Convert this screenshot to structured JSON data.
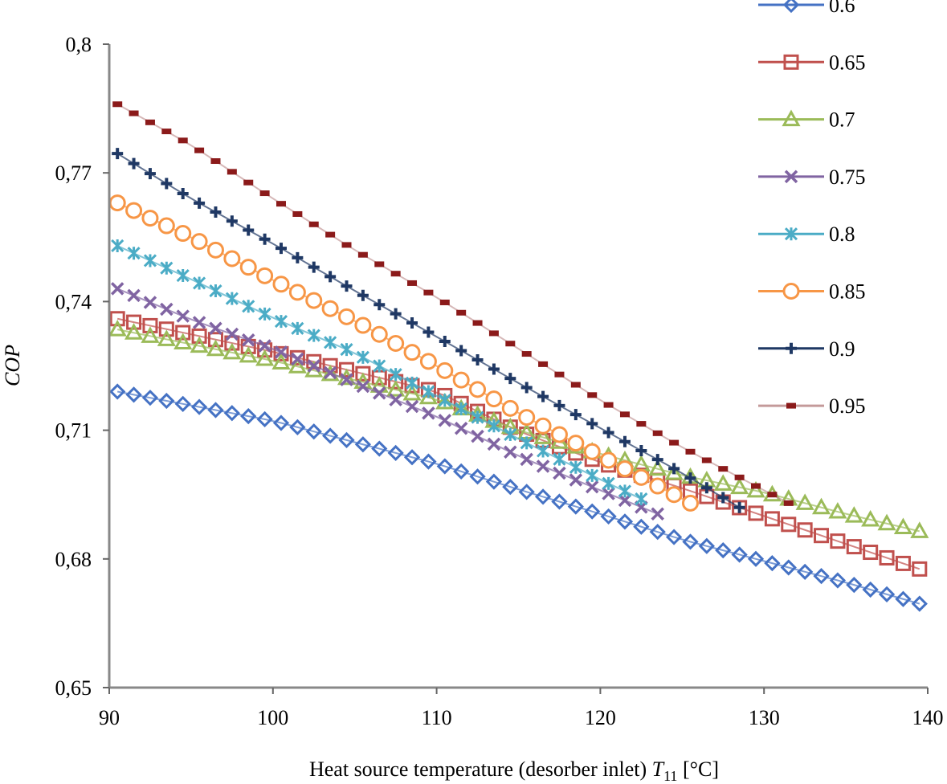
{
  "chart_data": {
    "type": "line",
    "title": "",
    "xlabel": "Heat source temperature (desorber inlet) ",
    "xlabel_symbol": "T",
    "xlabel_subscript": "11",
    "xlabel_unit": " [°C]",
    "ylabel": "COP",
    "xlim": [
      90,
      140
    ],
    "ylim": [
      0.65,
      0.8
    ],
    "x_ticks": [
      90,
      100,
      110,
      120,
      130,
      140
    ],
    "x_tick_labels": [
      "90",
      "100",
      "110",
      "120",
      "130",
      "140"
    ],
    "y_ticks": [
      0.65,
      0.68,
      0.71,
      0.74,
      0.77,
      0.8
    ],
    "y_tick_labels": [
      "0,65",
      "0,68",
      "0,71",
      "0,74",
      "0,77",
      "0,8"
    ],
    "grid": false,
    "legend_position": "right",
    "x_start": 90.5,
    "x_step": 1,
    "series": [
      {
        "name": "0.6",
        "marker": "diamond",
        "color": "#4572C4",
        "x_end": 140,
        "anchors": [
          [
            90.5,
            0.719
          ],
          [
            100,
            0.7122
          ],
          [
            110,
            0.7022
          ],
          [
            115,
            0.6962
          ],
          [
            120,
            0.6905
          ],
          [
            125,
            0.6845
          ],
          [
            130,
            0.6795
          ],
          [
            135,
            0.6745
          ],
          [
            140,
            0.669
          ]
        ]
      },
      {
        "name": "0.65",
        "marker": "square",
        "color": "#C0504D",
        "x_end": 140,
        "anchors": [
          [
            90.5,
            0.736
          ],
          [
            100,
            0.7283
          ],
          [
            110,
            0.719
          ],
          [
            115,
            0.7098
          ],
          [
            120,
            0.7025
          ],
          [
            125,
            0.6965
          ],
          [
            130,
            0.69
          ],
          [
            135,
            0.6835
          ],
          [
            140,
            0.677
          ]
        ]
      },
      {
        "name": "0.7",
        "marker": "triangle",
        "color": "#9BBB59",
        "x_end": 140,
        "anchors": [
          [
            90.5,
            0.7335
          ],
          [
            100,
            0.7262
          ],
          [
            110,
            0.7172
          ],
          [
            115,
            0.71
          ],
          [
            120,
            0.7045
          ],
          [
            125,
            0.6995
          ],
          [
            130,
            0.6955
          ],
          [
            135,
            0.6905
          ],
          [
            140,
            0.686
          ]
        ]
      },
      {
        "name": "0.75",
        "marker": "x",
        "color": "#8064A2",
        "x_end": 123.5,
        "anchors": [
          [
            90.5,
            0.743
          ],
          [
            95,
            0.7358
          ],
          [
            100,
            0.729
          ],
          [
            105,
            0.721
          ],
          [
            110,
            0.7132
          ],
          [
            115,
            0.704
          ],
          [
            120,
            0.696
          ],
          [
            123.5,
            0.6905
          ]
        ]
      },
      {
        "name": "0.8",
        "marker": "asterisk",
        "color": "#4BACC6",
        "x_end": 122.5,
        "anchors": [
          [
            90.5,
            0.753
          ],
          [
            95,
            0.7452
          ],
          [
            100,
            0.7362
          ],
          [
            105,
            0.728
          ],
          [
            110,
            0.718
          ],
          [
            115,
            0.708
          ],
          [
            120,
            0.6985
          ],
          [
            122.5,
            0.694
          ]
        ]
      },
      {
        "name": "0.85",
        "marker": "circle",
        "color": "#F79646",
        "x_end": 125.5,
        "anchors": [
          [
            90.5,
            0.763
          ],
          [
            95,
            0.755
          ],
          [
            100,
            0.745
          ],
          [
            105,
            0.7355
          ],
          [
            110,
            0.725
          ],
          [
            115,
            0.714
          ],
          [
            120,
            0.704
          ],
          [
            125.5,
            0.693
          ]
        ]
      },
      {
        "name": "0.9",
        "marker": "plus",
        "color": "#1F3864",
        "x_end": 128.5,
        "anchors": [
          [
            90.5,
            0.7745
          ],
          [
            95,
            0.764
          ],
          [
            100,
            0.7535
          ],
          [
            105,
            0.7425
          ],
          [
            110,
            0.7318
          ],
          [
            115,
            0.721
          ],
          [
            120,
            0.7105
          ],
          [
            125,
            0.7
          ],
          [
            128.5,
            0.692
          ]
        ]
      },
      {
        "name": "0.95",
        "marker": "dash",
        "color": "#8B1A1A",
        "line_color": "#C49A9A",
        "x_end": 132,
        "anchors": [
          [
            90.5,
            0.786
          ],
          [
            95,
            0.7765
          ],
          [
            100,
            0.764
          ],
          [
            105,
            0.752
          ],
          [
            110,
            0.741
          ],
          [
            115,
            0.729
          ],
          [
            120,
            0.717
          ],
          [
            125,
            0.706
          ],
          [
            130,
            0.696
          ],
          [
            132,
            0.692
          ]
        ]
      }
    ]
  }
}
